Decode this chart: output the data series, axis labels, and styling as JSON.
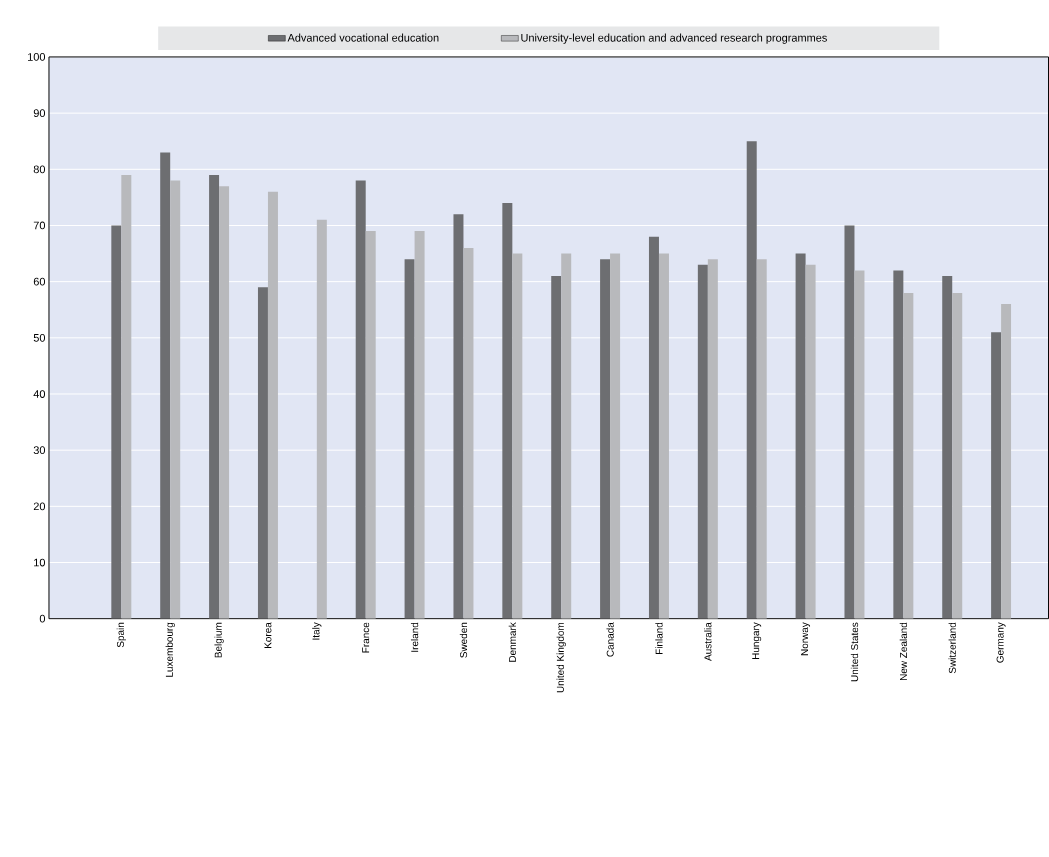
{
  "chart_data": {
    "type": "bar",
    "categories": [
      "Spain",
      "Luxembourg",
      "Belgium",
      "Korea",
      "Italy",
      "France",
      "Ireland",
      "Sweden",
      "Denmark",
      "United Kingdom",
      "Canada",
      "Finland",
      "Australia",
      "Hungary",
      "Norway",
      "United States",
      "New Zealand",
      "Switzerland",
      "Germany"
    ],
    "series": [
      {
        "name": "Advanced vocational education",
        "color": "#6d6e71",
        "values": [
          70,
          83,
          79,
          59,
          null,
          78,
          64,
          72,
          74,
          61,
          64,
          68,
          63,
          85,
          65,
          70,
          62,
          61,
          51
        ]
      },
      {
        "name": "University-level education and advanced research programmes",
        "color": "#b8b9bc",
        "values": [
          79,
          78,
          77,
          76,
          71,
          69,
          69,
          66,
          65,
          65,
          65,
          65,
          64,
          64,
          63,
          62,
          58,
          58,
          56
        ]
      }
    ],
    "ylim": [
      0,
      100
    ],
    "yticks": [
      0,
      10,
      20,
      30,
      40,
      50,
      60,
      70,
      80,
      90,
      100
    ],
    "grid": "y",
    "legend": "top"
  }
}
